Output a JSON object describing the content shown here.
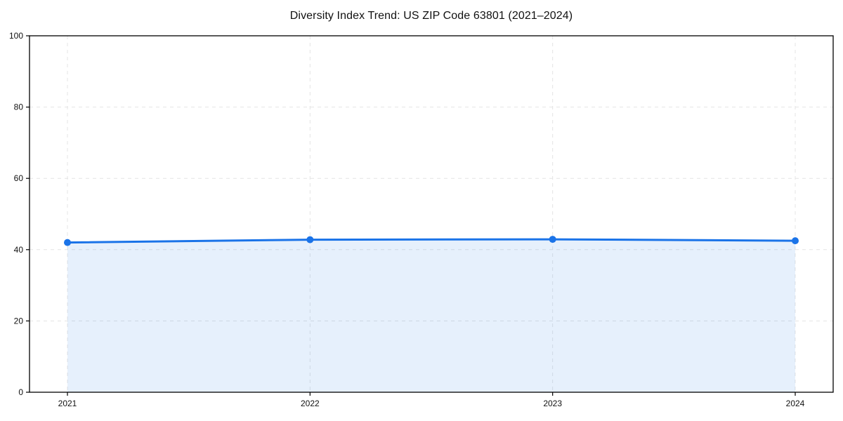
{
  "chart_data": {
    "type": "area",
    "title": "Diversity Index Trend: US ZIP Code 63801 (2021–2024)",
    "x": [
      "2021",
      "2022",
      "2023",
      "2024"
    ],
    "series": [
      {
        "name": "Diversity Index",
        "values": [
          42.0,
          42.8,
          42.9,
          42.5
        ]
      }
    ],
    "xlabel": "",
    "ylabel": "",
    "ylim": [
      0,
      100
    ],
    "yticks": [
      0,
      20,
      40,
      60,
      80,
      100
    ],
    "grid": "dashed-both-axes",
    "legend": "none",
    "colors": {
      "line": "#1a73e8",
      "marker": "#1a73e8",
      "fill": "rgba(26,115,232,0.11)",
      "grid": "#e4e4e4",
      "axis": "#000000",
      "label": "#111111",
      "background": "#ffffff"
    }
  }
}
